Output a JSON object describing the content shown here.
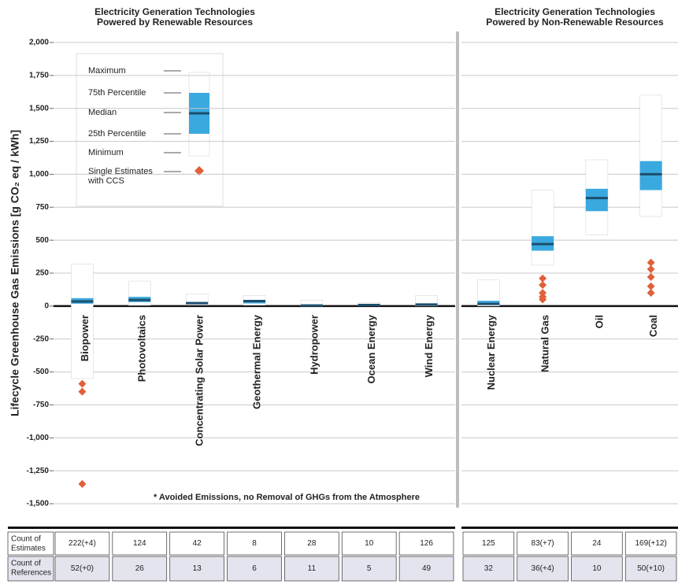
{
  "chart_data": {
    "type": "box",
    "y_label": "Lifecycle Greenhouse Gas Emissions [g CO₂ eq / kWh]",
    "ylim": [
      -1500,
      2000
    ],
    "yticks": [
      {
        "value": -1500,
        "label": "-1,500"
      },
      {
        "value": -1250,
        "label": "-1,250"
      },
      {
        "value": -1000,
        "label": "-1,000"
      },
      -750,
      -500,
      -250,
      0,
      250,
      500,
      750,
      {
        "value": 1000,
        "label": "1,000"
      },
      {
        "value": 1250,
        "label": "1,250"
      },
      {
        "value": 1500,
        "label": "1,500"
      },
      {
        "value": 1750,
        "label": "1,750"
      },
      {
        "value": 2000,
        "label": "2,000"
      }
    ],
    "grid": true,
    "box_color": "#ffffff",
    "iqr_color": "#3aa9df",
    "median_color": "#1d4f6e",
    "ccs_color": "#e0603a",
    "legend": {
      "labels": [
        "Maximum",
        "75th Percentile",
        "Median",
        "25th Percentile",
        "Minimum"
      ],
      "ccs_label": [
        "Single Estimates",
        "with CCS"
      ]
    },
    "footnote": "* Avoided Emissions, no Removal of GHGs from the Atmosphere",
    "table_rows": [
      [
        "Count of",
        "Estimates"
      ],
      [
        "Count of",
        "References"
      ]
    ],
    "panels": [
      {
        "title": [
          "Electricity Generation Technologies",
          "Powered by Renewable Resources"
        ],
        "categories": [
          "Biopower",
          "Photovoltaics",
          "Concentrating Solar Power",
          "Geothermal Energy",
          "Hydropower",
          "Ocean Energy",
          "Wind Energy"
        ],
        "min": [
          -550,
          5,
          8,
          6,
          0,
          2,
          2
        ],
        "q1": [
          18,
          30,
          15,
          20,
          3,
          5,
          8
        ],
        "median": [
          35,
          46,
          22,
          38,
          4,
          8,
          12
        ],
        "q3": [
          60,
          70,
          30,
          45,
          7,
          15,
          14
        ],
        "max": [
          320,
          190,
          90,
          80,
          45,
          25,
          80
        ],
        "ccs": [
          [
            -590,
            -650,
            -1350
          ],
          [],
          [],
          [],
          [],
          [],
          []
        ],
        "count_estimates": [
          "222(+4)",
          "124",
          "42",
          "8",
          "28",
          "10",
          "126"
        ],
        "count_references": [
          "52(+0)",
          "26",
          "13",
          "6",
          "11",
          "5",
          "49"
        ]
      },
      {
        "title": [
          "Electricity Generation Technologies",
          "Powered by Non-Renewable Resources"
        ],
        "categories": [
          "Nuclear Energy",
          "Natural Gas",
          "Oil",
          "Coal"
        ],
        "min": [
          1,
          310,
          540,
          680
        ],
        "q1": [
          8,
          420,
          720,
          880
        ],
        "median": [
          16,
          470,
          820,
          1000
        ],
        "q3": [
          40,
          530,
          890,
          1100
        ],
        "max": [
          200,
          880,
          1110,
          1600
        ],
        "ccs": [
          [],
          [
            210,
            160,
            100,
            70,
            50
          ],
          [],
          [
            330,
            280,
            220,
            150,
            100
          ]
        ],
        "count_estimates": [
          "125",
          "83(+7)",
          "24",
          "169(+12)"
        ],
        "count_references": [
          "32",
          "36(+4)",
          "10",
          "50(+10)"
        ]
      }
    ]
  }
}
